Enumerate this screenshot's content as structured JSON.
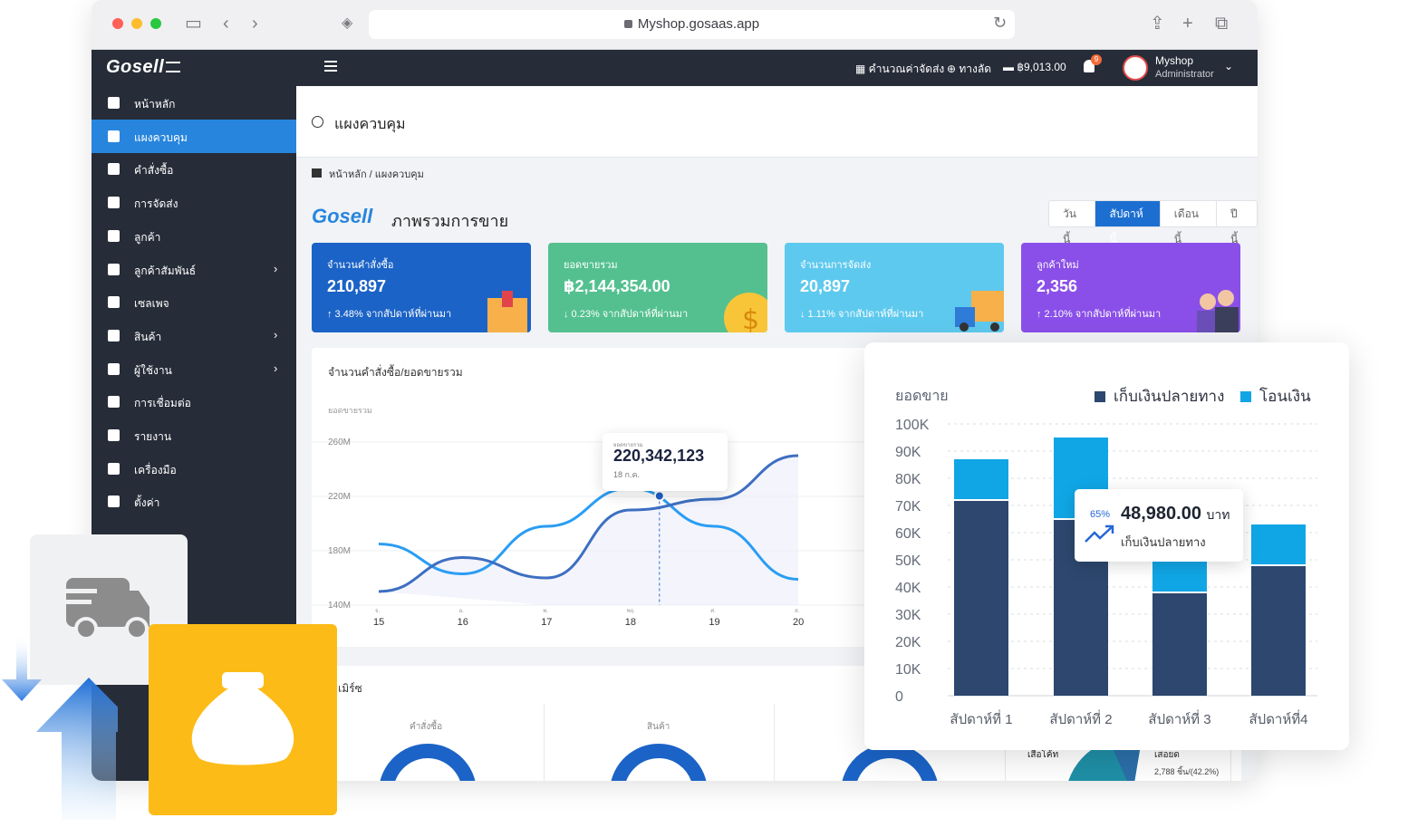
{
  "browser": {
    "url": "Myshop.gosaas.app"
  },
  "topbar": {
    "brand": "Gosell",
    "shipping_calc": "คำนวณค่าจัดส่ง",
    "shortcut": "ทางลัด",
    "balance": "฿9,013.00",
    "notification_count": "9",
    "user_name": "Myshop",
    "user_role": "Administrator"
  },
  "sidebar": {
    "items": [
      {
        "label": "หน้าหลัก",
        "icon": "home-icon",
        "active": false,
        "has_children": false
      },
      {
        "label": "แผงควบคุม",
        "icon": "dashboard-icon",
        "active": true,
        "has_children": false
      },
      {
        "label": "คำสั่งซื้อ",
        "icon": "cart-icon",
        "active": false,
        "has_children": false
      },
      {
        "label": "การจัดส่ง",
        "icon": "truck-icon",
        "active": false,
        "has_children": false
      },
      {
        "label": "ลูกค้า",
        "icon": "users-icon",
        "active": false,
        "has_children": false
      },
      {
        "label": "ลูกค้าสัมพันธ์",
        "icon": "user-tie-icon",
        "active": false,
        "has_children": true
      },
      {
        "label": "เซลเพจ",
        "icon": "window-icon",
        "active": false,
        "has_children": false
      },
      {
        "label": "สินค้า",
        "icon": "boxes-icon",
        "active": false,
        "has_children": true
      },
      {
        "label": "ผู้ใช้งาน",
        "icon": "user-group-icon",
        "active": false,
        "has_children": true
      },
      {
        "label": "การเชื่อมต่อ",
        "icon": "plug-icon",
        "active": false,
        "has_children": false
      },
      {
        "label": "รายงาน",
        "icon": "report-icon",
        "active": false,
        "has_children": false
      },
      {
        "label": "เครื่องมือ",
        "icon": "tools-icon",
        "active": false,
        "has_children": false
      },
      {
        "label": "ตั้งค่า",
        "icon": "gear-icon",
        "active": false,
        "has_children": false
      }
    ]
  },
  "page": {
    "title": "แผงควบคุม",
    "breadcrumb_home": "หน้าหลัก",
    "breadcrumb_sep": "/",
    "breadcrumb_current": "แผงควบคุม",
    "sales_brand": "Gosell",
    "sales_title": "ภาพรวมการขาย",
    "period_tabs": [
      {
        "label": "วันนี้",
        "active": false
      },
      {
        "label": "สัปดาห์นี้",
        "active": true
      },
      {
        "label": "เดือนนี้",
        "active": false
      },
      {
        "label": "ปีนี้",
        "active": false
      }
    ]
  },
  "kpis": [
    {
      "label": "จำนวนคำสั่งซื้อ",
      "value": "210,897",
      "change": "↑ 3.48%  จากสัปดาห์ที่ผ่านมา",
      "color": "#1b63c6",
      "art": "box-icon"
    },
    {
      "label": "ยอดขายรวม",
      "value": "฿2,144,354.00",
      "change": "↓ 0.23%  จากสัปดาห์ที่ผ่านมา",
      "color": "#54c08f",
      "art": "coin-icon"
    },
    {
      "label": "จำนวนการจัดส่ง",
      "value": "20,897",
      "change": "↓ 1.11%  จากสัปดาห์ที่ผ่านมา",
      "color": "#5ec9ee",
      "art": "delivery-truck-icon"
    },
    {
      "label": "ลูกค้าใหม่",
      "value": "2,356",
      "change": "↑ 2.10%  จากสัปดาห์ที่ผ่านมา",
      "color": "#8a4fe8",
      "art": "customers-icon"
    }
  ],
  "line_chart": {
    "title": "จำนวนคำสั่งซื้อ/ยอดขายรวม",
    "ylabel": "ยอดขายรวม",
    "tooltip_label": "ยอดขายรวม",
    "tooltip_value": "220,342,123",
    "tooltip_date": "18 ก.ค."
  },
  "commerce": {
    "title": "คอมเมิร์ซ",
    "col1": "คำสั่งซื้อ",
    "col2": "สินค้า",
    "panel_label1": "เสื้อโค้ท",
    "panel_label2": "เสอยด",
    "panel_label3": "2,788 ชิ้น/(42.2%)"
  },
  "bar_tooltip": {
    "pct": "65%",
    "value": "48,980.00",
    "unit": "บาท",
    "label": "เก็บเงินปลายทาง"
  },
  "chart_data": [
    {
      "type": "line",
      "ylabel": "ยอดขายรวม",
      "ylim": [
        140,
        260
      ],
      "y_ticks": [
        "260M",
        "220M",
        "180M",
        "140M"
      ],
      "x": [
        "15",
        "16",
        "17",
        "18",
        "19",
        "20"
      ],
      "x_sublabels": [
        "จ.",
        "อ.",
        "พ.",
        "พฤ.",
        "ศ.",
        "ส."
      ],
      "series": [
        {
          "color": "#2a9df4",
          "values": [
            185,
            163,
            198,
            226,
            198,
            159
          ]
        },
        {
          "color": "#3d6fc1",
          "values": [
            150,
            175,
            160,
            210,
            218,
            250
          ]
        }
      ],
      "highlight": {
        "x": "18",
        "value": 220.342123
      }
    },
    {
      "type": "bar",
      "stacked": true,
      "ylabel": "ยอดขาย",
      "ylim": [
        0,
        100000
      ],
      "y_ticks": [
        "100K",
        "90K",
        "80K",
        "70K",
        "60K",
        "50K",
        "40K",
        "30K",
        "20K",
        "10K",
        "0"
      ],
      "categories": [
        "สัปดาห์ที่ 1",
        "สัปดาห์ที่ 2",
        "สัปดาห์ที่ 3",
        "สัปดาห์ที่4"
      ],
      "legend_placement": "top-right",
      "series": [
        {
          "name": "เก็บเงินปลายทาง",
          "color": "#2d476e",
          "values": [
            72000,
            65000,
            38000,
            48000
          ]
        },
        {
          "name": "โอนเงิน",
          "color": "#10a6e6",
          "values": [
            15000,
            30000,
            14000,
            15000
          ]
        }
      ]
    },
    {
      "type": "pie",
      "series": [
        {
          "values": [
            55,
            25,
            20
          ],
          "colors": [
            "#1b63c6",
            "#16466f",
            "#2ca8ee"
          ]
        },
        {
          "values": [
            70,
            5,
            25
          ],
          "colors": [
            "#1b63c6",
            "#16466f",
            "#2ca8ee"
          ]
        },
        {
          "values": [
            60,
            25,
            15
          ],
          "colors": [
            "#1b63c6",
            "#16466f",
            "#2ca8ee"
          ]
        }
      ]
    }
  ]
}
